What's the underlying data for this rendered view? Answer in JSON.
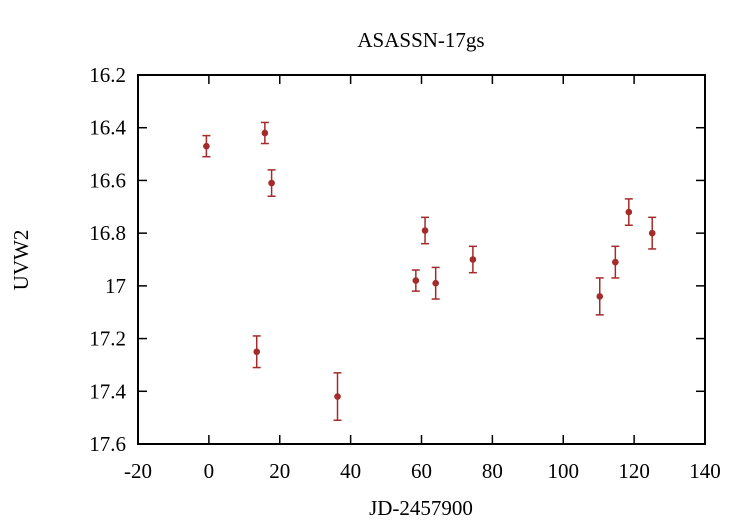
{
  "chart_data": {
    "type": "scatter",
    "title": "ASASSN-17gs",
    "xlabel": "JD-2457900",
    "ylabel": "UVW2",
    "xlim": [
      -20,
      140
    ],
    "ylim": [
      16.2,
      17.6
    ],
    "y_inverted": true,
    "x_ticks": [
      -20,
      0,
      20,
      40,
      60,
      80,
      100,
      120,
      140
    ],
    "x_tick_labels": [
      "-20",
      "0",
      "20",
      "40",
      "60",
      "80",
      "100",
      "120",
      "140"
    ],
    "y_ticks": [
      16.2,
      16.4,
      16.6,
      16.8,
      17.0,
      17.2,
      17.4,
      17.6
    ],
    "y_tick_labels": [
      "16.2",
      "16.4",
      "16.6",
      "16.8",
      "17",
      "17.2",
      "17.4",
      "17.6"
    ],
    "grid": false,
    "marker_color": "#a52a2a",
    "series": [
      {
        "x": [
          -0.7,
          13.5,
          15.8,
          17.7,
          36.3,
          58.4,
          61.0,
          64.0,
          74.5,
          110.3,
          114.7,
          118.5,
          125.1
        ],
        "y": [
          16.47,
          17.25,
          16.42,
          16.61,
          17.42,
          16.98,
          16.79,
          16.99,
          16.9,
          17.04,
          16.91,
          16.72,
          16.8
        ],
        "err": [
          0.04,
          0.06,
          0.04,
          0.05,
          0.09,
          0.04,
          0.05,
          0.06,
          0.05,
          0.07,
          0.06,
          0.05,
          0.06
        ]
      }
    ]
  }
}
